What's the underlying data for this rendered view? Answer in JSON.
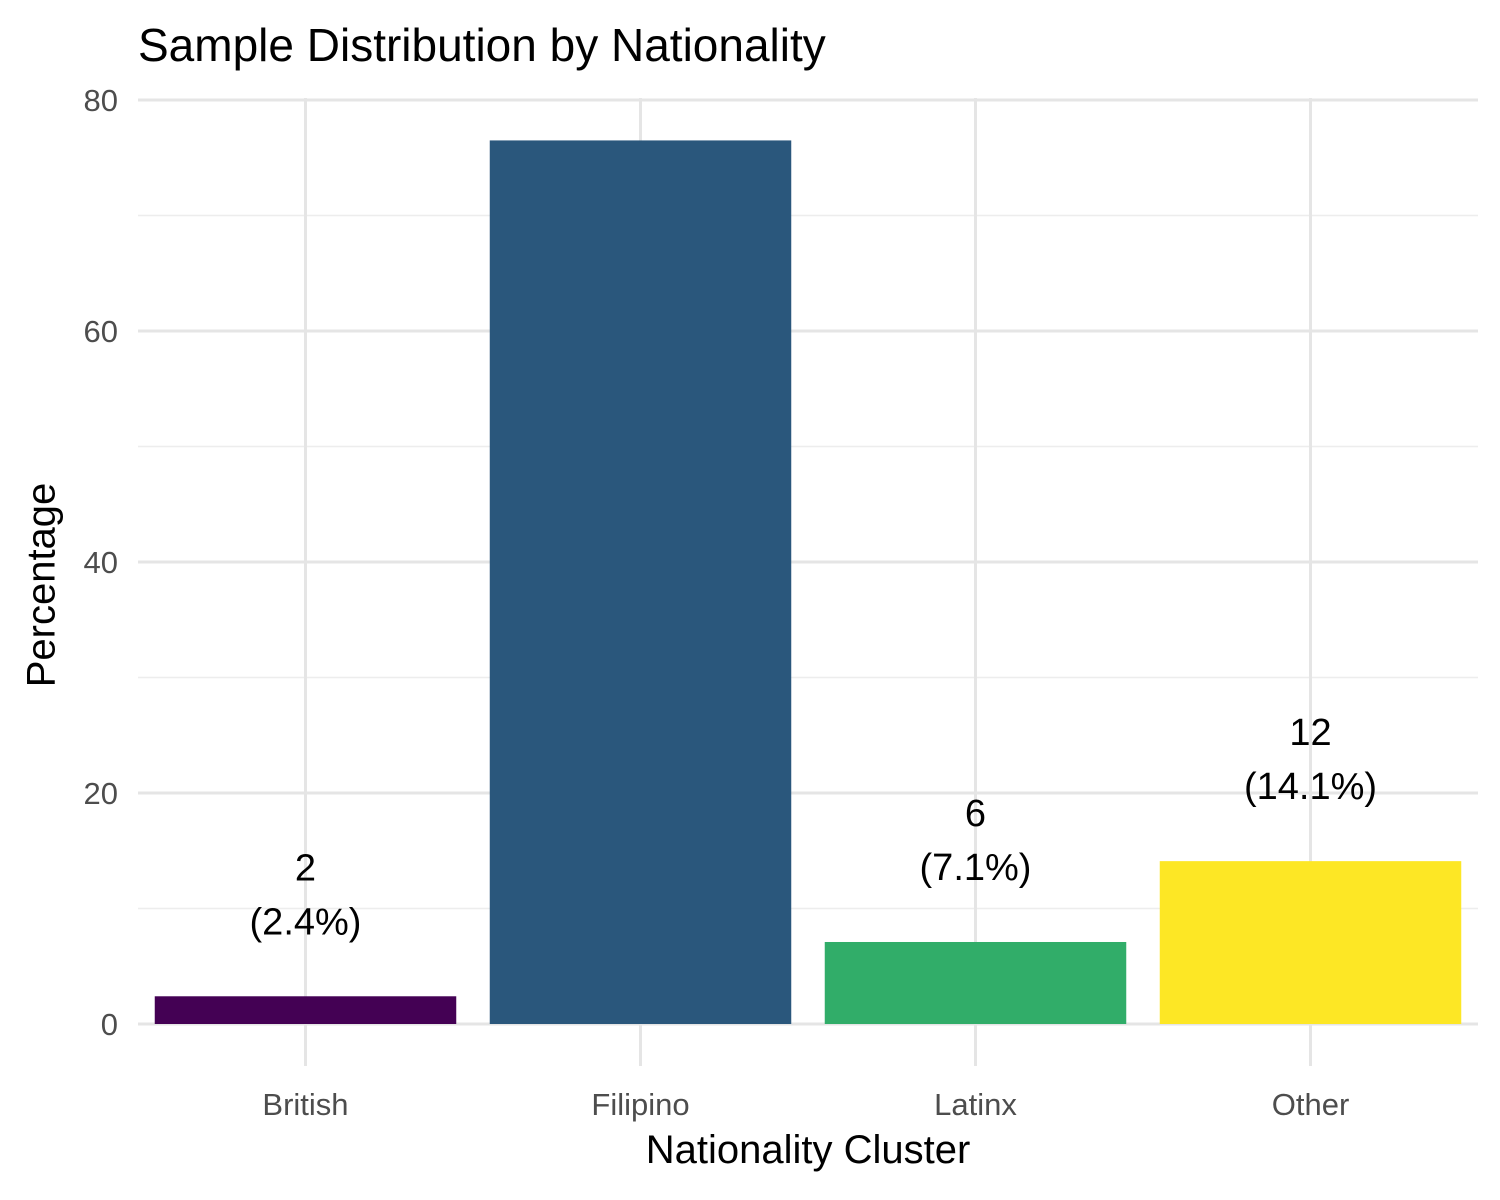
{
  "chart_data": {
    "type": "bar",
    "title": "Sample Distribution by Nationality",
    "xlabel": "Nationality Cluster",
    "ylabel": "Percentage",
    "categories": [
      "British",
      "Filipino",
      "Latinx",
      "Other"
    ],
    "values": [
      2.4,
      76.5,
      7.1,
      14.1
    ],
    "counts": [
      "2",
      "",
      "6",
      "12"
    ],
    "percent_labels": [
      "(2.4%)",
      "",
      "(7.1%)",
      "(14.1%)"
    ],
    "colors": [
      "#440154",
      "#2a577c",
      "#31ad69",
      "#fde725"
    ],
    "ylim": [
      0,
      80
    ],
    "yticks": [
      0,
      20,
      40,
      60,
      80
    ],
    "grid": true,
    "legend": "none"
  }
}
